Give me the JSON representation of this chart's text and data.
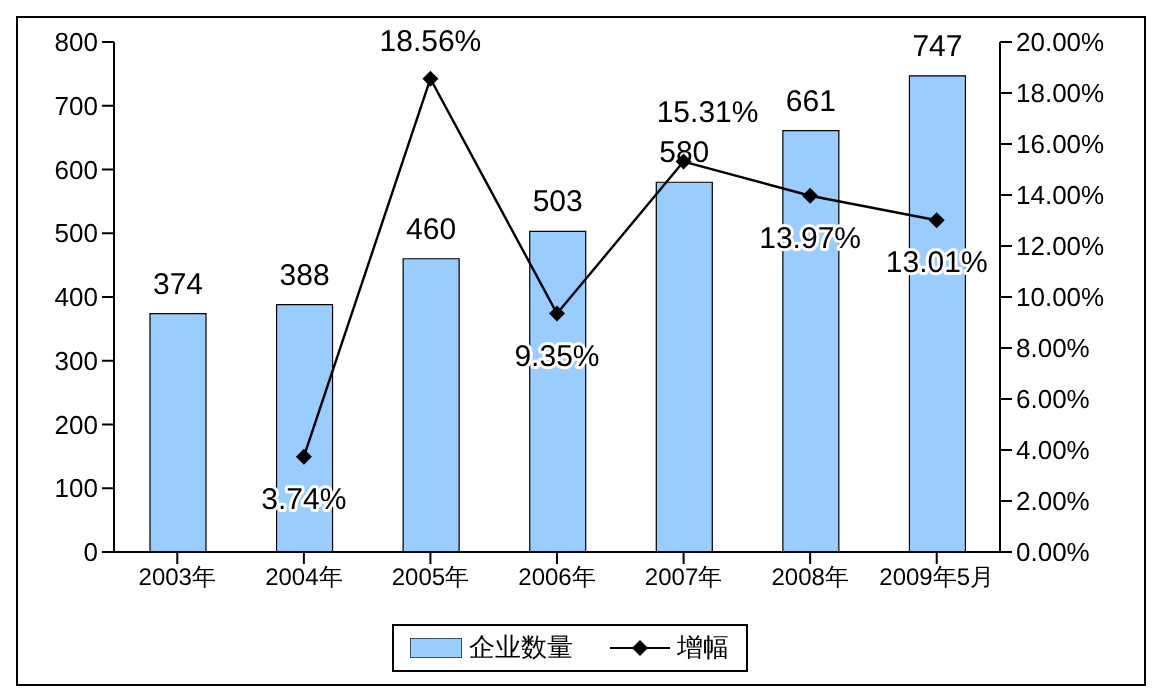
{
  "chart_data": {
    "type": "bar",
    "categories": [
      "2003年",
      "2004年",
      "2005年",
      "2006年",
      "2007年",
      "2008年",
      "2009年5月"
    ],
    "series": [
      {
        "name": "企业数量",
        "color": "#99ccff",
        "values": [
          374,
          388,
          460,
          503,
          580,
          661,
          747
        ],
        "value_labels": [
          "374",
          "388",
          "460",
          "503",
          "580",
          "661",
          "747"
        ]
      },
      {
        "name": "增幅",
        "type": "line",
        "axis": "y2",
        "color": "#000000",
        "marker": "diamond",
        "values": [
          null,
          3.74,
          18.56,
          9.35,
          15.31,
          13.97,
          13.01
        ],
        "value_labels": [
          null,
          "3.74%",
          "18.56%",
          "9.35%",
          "15.31%",
          "13.97%",
          "13.01%"
        ]
      }
    ],
    "ylim": [
      0,
      800
    ],
    "yticks": [
      0,
      100,
      200,
      300,
      400,
      500,
      600,
      700,
      800
    ],
    "y2lim": [
      0,
      20
    ],
    "y2ticks": [
      {
        "value": 0,
        "label": "0.00%"
      },
      {
        "value": 2,
        "label": "2.00%"
      },
      {
        "value": 4,
        "label": "4.00%"
      },
      {
        "value": 6,
        "label": "6.00%"
      },
      {
        "value": 8,
        "label": "8.00%"
      },
      {
        "value": 10,
        "label": "10.00%"
      },
      {
        "value": 12,
        "label": "12.00%"
      },
      {
        "value": 14,
        "label": "14.00%"
      },
      {
        "value": 16,
        "label": "16.00%"
      },
      {
        "value": 18,
        "label": "18.00%"
      },
      {
        "value": 20,
        "label": "20.00%"
      }
    ],
    "grid": false,
    "legend": "bottom"
  }
}
